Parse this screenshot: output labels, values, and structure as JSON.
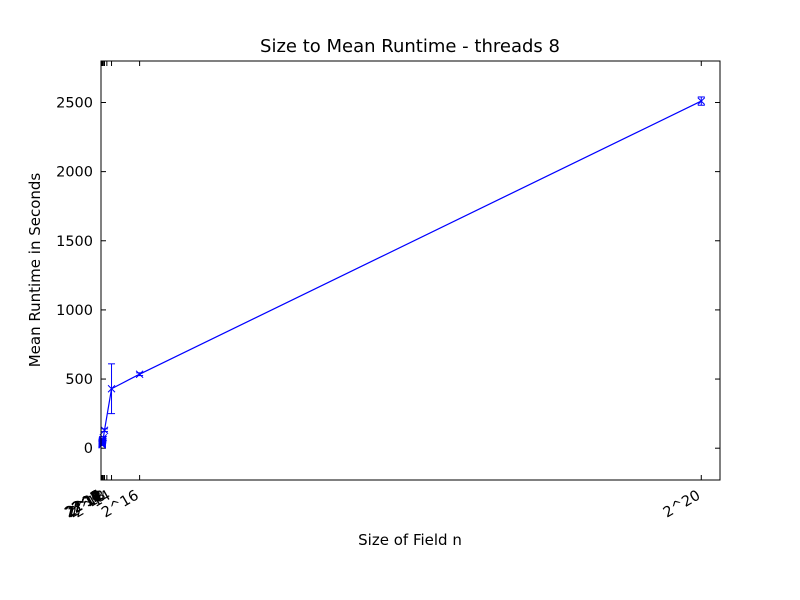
{
  "chart_data": {
    "type": "line",
    "title": "Size to Mean Runtime - threads 8",
    "xlabel": "Size of Field n",
    "ylabel": "Mean Runtime in Seconds",
    "xlim": [
      -2048,
      1081344
    ],
    "ylim": [
      -230,
      2800
    ],
    "xscale": "linear",
    "grid": false,
    "legend": "none",
    "y_ticks": [
      0,
      500,
      1000,
      1500,
      2000,
      2500
    ],
    "x_ticks": [
      {
        "value": 2,
        "label": "2^1"
      },
      {
        "value": 4,
        "label": "2^2"
      },
      {
        "value": 8,
        "label": "2^3"
      },
      {
        "value": 16,
        "label": "2^4"
      },
      {
        "value": 32,
        "label": "2^5"
      },
      {
        "value": 64,
        "label": "2^6"
      },
      {
        "value": 128,
        "label": "2^7"
      },
      {
        "value": 256,
        "label": "2^8"
      },
      {
        "value": 512,
        "label": "2^9"
      },
      {
        "value": 1024,
        "label": "2^10"
      },
      {
        "value": 2048,
        "label": "2^11"
      },
      {
        "value": 4096,
        "label": "2^12"
      },
      {
        "value": 8192,
        "label": "2^13"
      },
      {
        "value": 16384,
        "label": "2^14"
      },
      {
        "value": 65536,
        "label": "2^16"
      },
      {
        "value": 1048576,
        "label": "2^20"
      }
    ],
    "series": [
      {
        "color": "#0000ff",
        "marker": "x",
        "points": [
          {
            "x": 2,
            "y": 25,
            "err": 5
          },
          {
            "x": 4,
            "y": 27,
            "err": 5
          },
          {
            "x": 8,
            "y": 30,
            "err": 5
          },
          {
            "x": 16,
            "y": 32,
            "err": 5
          },
          {
            "x": 32,
            "y": 35,
            "err": 5
          },
          {
            "x": 64,
            "y": 38,
            "err": 5
          },
          {
            "x": 128,
            "y": 42,
            "err": 5
          },
          {
            "x": 256,
            "y": 48,
            "err": 5
          },
          {
            "x": 512,
            "y": 55,
            "err": 6
          },
          {
            "x": 1024,
            "y": 62,
            "err": 6
          },
          {
            "x": 2048,
            "y": 75,
            "err": 8
          },
          {
            "x": 4096,
            "y": 130,
            "err": 10
          },
          {
            "x": 16384,
            "y": 430,
            "err": 180
          },
          {
            "x": 65536,
            "y": 535,
            "err": 10
          },
          {
            "x": 1048576,
            "y": 2510,
            "err": 30
          }
        ]
      }
    ]
  }
}
